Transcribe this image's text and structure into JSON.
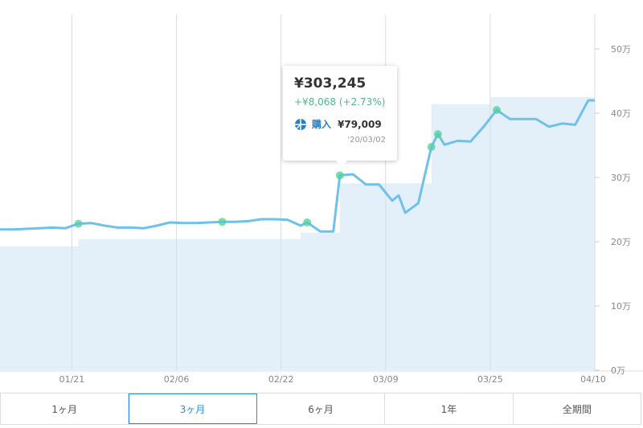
{
  "chart_data": {
    "type": "line",
    "x": [
      "01/10",
      "01/12",
      "01/14",
      "01/16",
      "01/18",
      "01/20",
      "01/22",
      "01/24",
      "01/26",
      "01/28",
      "01/30",
      "02/01",
      "02/03",
      "02/05",
      "02/07",
      "02/09",
      "02/11",
      "02/13",
      "02/15",
      "02/17",
      "02/19",
      "02/21",
      "02/23",
      "02/25",
      "02/26",
      "02/28",
      "03/01",
      "03/02",
      "03/04",
      "03/06",
      "03/08",
      "03/10",
      "03/11",
      "03/12",
      "03/14",
      "03/16",
      "03/17",
      "03/18",
      "03/20",
      "03/22",
      "03/24",
      "03/26",
      "03/28",
      "03/30",
      "04/01",
      "04/03",
      "04/05",
      "04/07",
      "04/09",
      "04/10"
    ],
    "series": [
      {
        "color": "#6fc1e9",
        "values": [
          219000,
          219000,
          220000,
          221000,
          222000,
          221000,
          228000,
          229000,
          225000,
          222000,
          222000,
          221000,
          225000,
          230000,
          229000,
          229000,
          230000,
          231000,
          231000,
          232000,
          235000,
          235000,
          234000,
          225000,
          230000,
          216000,
          216000,
          303245,
          305000,
          289000,
          289000,
          264000,
          272000,
          245000,
          260000,
          347500,
          367500,
          351000,
          357000,
          356000,
          379000,
          405000,
          391000,
          391000,
          391000,
          379000,
          384000,
          382000,
          420000,
          420000
        ]
      }
    ],
    "area": {
      "color": "#e3f0fa",
      "x": [
        "01/10",
        "01/22",
        "02/25",
        "03/02",
        "03/16",
        "03/25",
        "04/10"
      ],
      "values": [
        192500,
        204000,
        214000,
        291000,
        414000,
        425000,
        425000
      ]
    },
    "markers": {
      "color": "#4fcf9f",
      "x": [
        "01/22",
        "02/13",
        "02/26",
        "03/02",
        "03/16",
        "03/17",
        "03/26"
      ],
      "values": [
        228000,
        231000,
        230000,
        303245,
        347500,
        367500,
        405000
      ]
    },
    "xlim": [
      "01/10",
      "04/10"
    ],
    "xticks": [
      "01/21",
      "02/06",
      "02/22",
      "03/09",
      "03/25",
      "04/10"
    ],
    "ylim": [
      0,
      575000
    ],
    "yticks": [
      {
        "value": 0,
        "label": "0万"
      },
      {
        "value": 100000,
        "label": "10万"
      },
      {
        "value": 200000,
        "label": "20万"
      },
      {
        "value": 300000,
        "label": "30万"
      },
      {
        "value": 400000,
        "label": "40万"
      },
      {
        "value": 500000,
        "label": "50万"
      }
    ],
    "grid": true
  },
  "tooltip": {
    "value": "¥303,245",
    "change": "+¥8,068 (+2.73%)",
    "kind": "購入",
    "amount": "¥79,009",
    "date": "'20/03/02"
  },
  "tabs": {
    "items": [
      "1ヶ月",
      "3ヶ月",
      "6ヶ月",
      "1年",
      "全期間"
    ],
    "selected": 1
  }
}
